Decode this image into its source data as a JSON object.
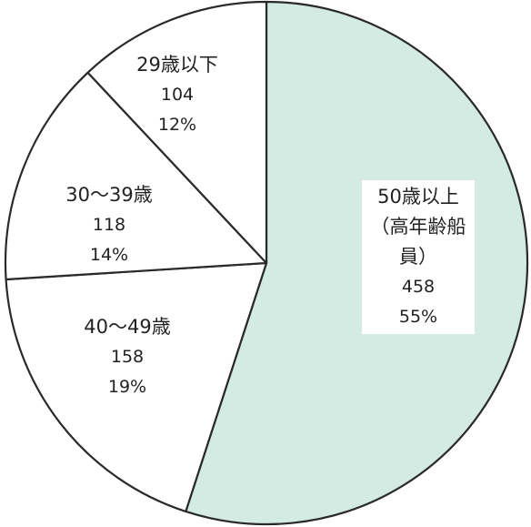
{
  "chart_data": {
    "type": "pie",
    "categories": [
      "50歳以上\n（高年齢船員）",
      "40～49歳",
      "30～39歳",
      "29歳以下"
    ],
    "values": [
      55,
      19,
      14,
      12
    ],
    "value_labels": [
      "55%",
      "19%",
      "14%",
      "12%"
    ],
    "counts": [
      458,
      158,
      118,
      104
    ],
    "colors": [
      "#d3ebe2",
      "#ffffff",
      "#ffffff",
      "#ffffff"
    ]
  }
}
